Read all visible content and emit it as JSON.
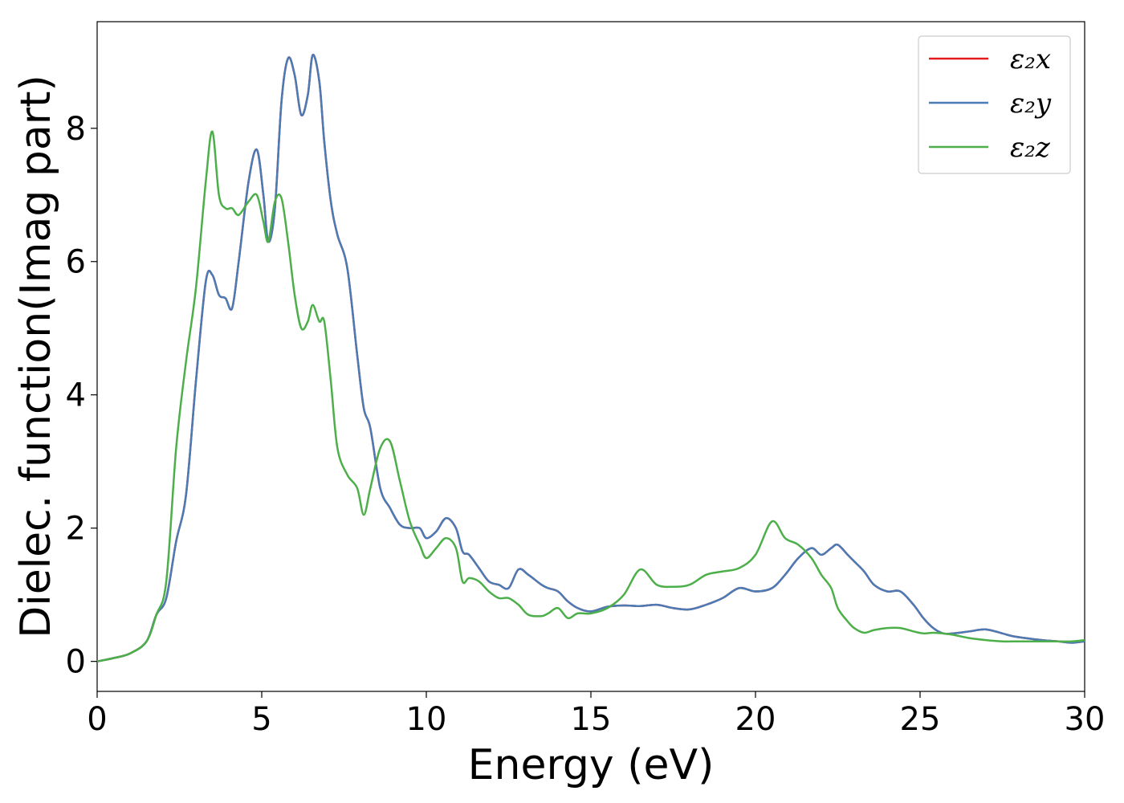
{
  "chart_data": {
    "type": "line",
    "title": "",
    "xlabel": "Energy (eV)",
    "ylabel": "Dielec. function(Imag part)",
    "xlim": [
      0,
      30
    ],
    "ylim": [
      -0.45,
      9.6
    ],
    "xticks": [
      0,
      5,
      10,
      15,
      20,
      25,
      30
    ],
    "yticks": [
      0,
      2,
      4,
      6,
      8
    ],
    "grid": false,
    "legend_position": "top-right",
    "x": [
      0,
      0.5,
      1,
      1.5,
      1.8,
      2.1,
      2.4,
      2.7,
      3.0,
      3.3,
      3.5,
      3.7,
      3.9,
      4.1,
      4.3,
      4.6,
      4.85,
      5.05,
      5.2,
      5.4,
      5.6,
      5.8,
      6.0,
      6.2,
      6.4,
      6.55,
      6.75,
      6.9,
      7.1,
      7.3,
      7.6,
      7.9,
      8.1,
      8.3,
      8.6,
      8.9,
      9.2,
      9.5,
      9.8,
      10.0,
      10.3,
      10.6,
      10.9,
      11.1,
      11.3,
      11.6,
      11.9,
      12.2,
      12.5,
      12.8,
      13.1,
      13.5,
      13.7,
      14.0,
      14.3,
      14.6,
      15.0,
      15.5,
      16.0,
      16.5,
      17.0,
      17.5,
      18.0,
      18.5,
      19.0,
      19.5,
      20.0,
      20.5,
      20.9,
      21.3,
      21.7,
      22.0,
      22.3,
      22.5,
      22.8,
      23.0,
      23.3,
      23.6,
      24.0,
      24.4,
      24.8,
      25.1,
      25.4,
      25.7,
      26.0,
      26.5,
      27.0,
      27.5,
      27.8,
      28.2,
      28.7,
      29.2,
      29.6,
      30.0
    ],
    "series": [
      {
        "name": "ε₂x",
        "color": "#e41a1c",
        "values": [
          0,
          0.05,
          0.12,
          0.3,
          0.7,
          0.95,
          1.8,
          2.5,
          4.2,
          5.7,
          5.8,
          5.5,
          5.45,
          5.3,
          6.0,
          7.2,
          7.68,
          7.0,
          6.3,
          6.8,
          8.4,
          9.05,
          8.8,
          8.2,
          8.5,
          9.1,
          8.7,
          7.8,
          6.9,
          6.4,
          5.9,
          4.6,
          3.8,
          3.5,
          2.6,
          2.3,
          2.05,
          2.0,
          2.0,
          1.85,
          1.95,
          2.15,
          2.0,
          1.65,
          1.6,
          1.4,
          1.2,
          1.15,
          1.1,
          1.38,
          1.3,
          1.15,
          1.1,
          1.05,
          0.9,
          0.8,
          0.75,
          0.82,
          0.84,
          0.83,
          0.85,
          0.8,
          0.78,
          0.85,
          0.95,
          1.1,
          1.05,
          1.1,
          1.3,
          1.55,
          1.7,
          1.6,
          1.7,
          1.75,
          1.6,
          1.5,
          1.35,
          1.15,
          1.05,
          1.05,
          0.85,
          0.65,
          0.5,
          0.42,
          0.42,
          0.45,
          0.48,
          0.42,
          0.38,
          0.35,
          0.32,
          0.3,
          0.28,
          0.3
        ]
      },
      {
        "name": "ε₂y",
        "color": "#4a7bb5",
        "values": [
          0,
          0.05,
          0.12,
          0.3,
          0.7,
          0.95,
          1.8,
          2.5,
          4.2,
          5.7,
          5.8,
          5.5,
          5.45,
          5.3,
          6.0,
          7.2,
          7.68,
          7.0,
          6.3,
          6.8,
          8.4,
          9.05,
          8.8,
          8.2,
          8.5,
          9.1,
          8.7,
          7.8,
          6.9,
          6.4,
          5.9,
          4.6,
          3.8,
          3.5,
          2.6,
          2.3,
          2.05,
          2.0,
          2.0,
          1.85,
          1.95,
          2.15,
          2.0,
          1.65,
          1.6,
          1.4,
          1.2,
          1.15,
          1.1,
          1.38,
          1.3,
          1.15,
          1.1,
          1.05,
          0.9,
          0.8,
          0.75,
          0.82,
          0.84,
          0.83,
          0.85,
          0.8,
          0.78,
          0.85,
          0.95,
          1.1,
          1.05,
          1.1,
          1.3,
          1.55,
          1.7,
          1.6,
          1.7,
          1.75,
          1.6,
          1.5,
          1.35,
          1.15,
          1.05,
          1.05,
          0.85,
          0.65,
          0.5,
          0.42,
          0.42,
          0.45,
          0.48,
          0.42,
          0.38,
          0.35,
          0.32,
          0.3,
          0.28,
          0.3
        ]
      },
      {
        "name": "ε₂z",
        "color": "#4daf4a",
        "values": [
          0,
          0.05,
          0.12,
          0.3,
          0.7,
          1.2,
          3.2,
          4.5,
          5.6,
          7.2,
          7.95,
          7.0,
          6.8,
          6.8,
          6.7,
          6.9,
          7.0,
          6.6,
          6.3,
          6.9,
          6.95,
          6.3,
          5.5,
          5.0,
          5.1,
          5.35,
          5.1,
          5.1,
          4.2,
          3.2,
          2.8,
          2.6,
          2.2,
          2.6,
          3.2,
          3.3,
          2.7,
          2.1,
          1.75,
          1.55,
          1.7,
          1.85,
          1.7,
          1.2,
          1.25,
          1.2,
          1.05,
          0.95,
          0.95,
          0.85,
          0.7,
          0.68,
          0.72,
          0.8,
          0.65,
          0.72,
          0.72,
          0.8,
          1.0,
          1.38,
          1.15,
          1.12,
          1.15,
          1.3,
          1.35,
          1.4,
          1.6,
          2.1,
          1.85,
          1.75,
          1.55,
          1.3,
          1.1,
          0.8,
          0.6,
          0.5,
          0.43,
          0.47,
          0.5,
          0.5,
          0.45,
          0.42,
          0.43,
          0.42,
          0.4,
          0.35,
          0.32,
          0.3,
          0.3,
          0.3,
          0.3,
          0.3,
          0.3,
          0.32
        ]
      }
    ]
  }
}
